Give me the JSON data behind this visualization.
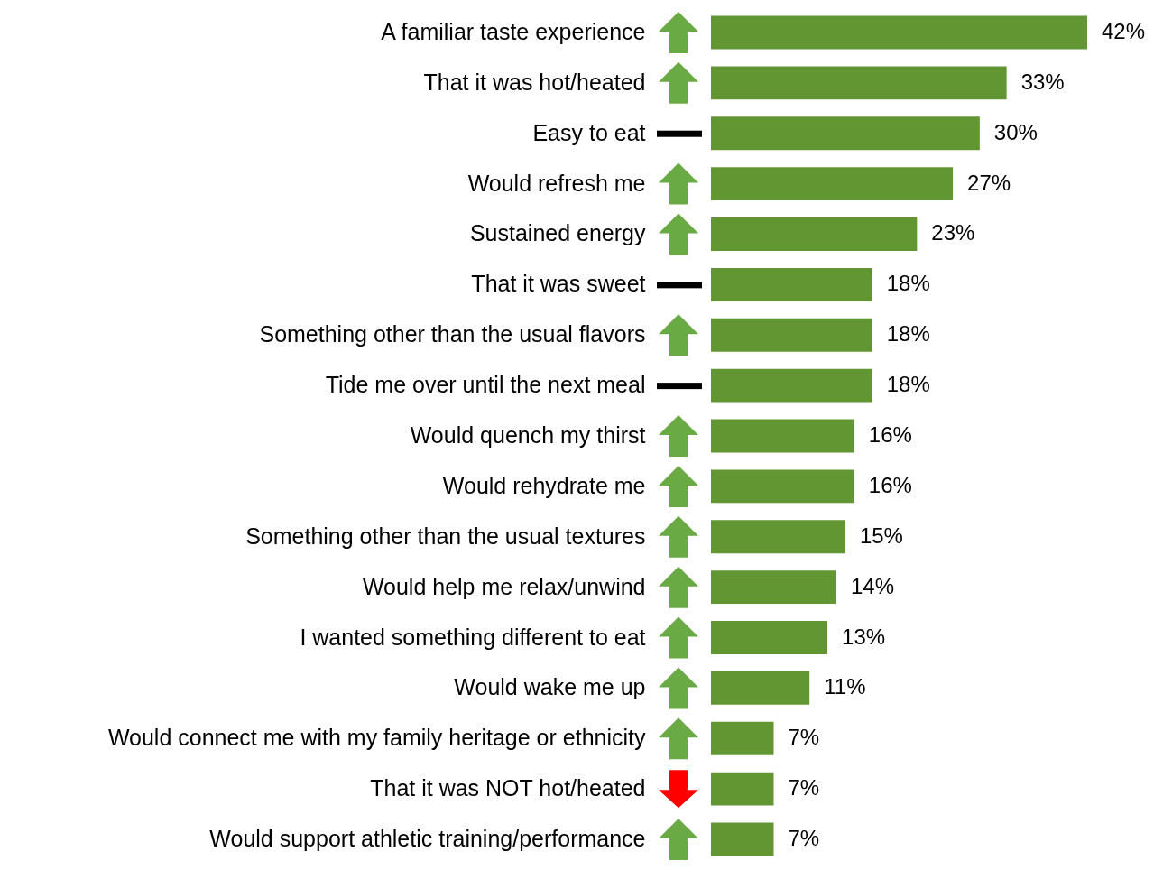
{
  "chart_data": {
    "type": "bar",
    "orientation": "horizontal",
    "categories": [
      "A familiar taste experience",
      "That it was hot/heated",
      "Easy to eat",
      "Would refresh me",
      "Sustained energy",
      "That it was sweet",
      "Something other than the usual flavors",
      "Tide me over until the next meal",
      "Would quench my thirst",
      "Would rehydrate me",
      "Something other than the usual textures",
      "Would help me relax/unwind",
      "I wanted something different to eat",
      "Would wake me up",
      "Would connect me with my family heritage or ethnicity",
      "That it was NOT hot/heated",
      "Would support athletic training/performance"
    ],
    "values": [
      42,
      33,
      30,
      27,
      23,
      18,
      18,
      18,
      16,
      16,
      15,
      14,
      13,
      11,
      7,
      7,
      7
    ],
    "value_labels": [
      "42%",
      "33%",
      "30%",
      "27%",
      "23%",
      "18%",
      "18%",
      "18%",
      "16%",
      "16%",
      "15%",
      "14%",
      "13%",
      "11%",
      "7%",
      "7%",
      "7%"
    ],
    "color": "#629632"
  }
}
